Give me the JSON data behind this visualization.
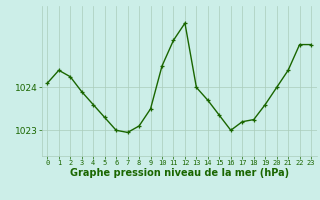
{
  "hours": [
    0,
    1,
    2,
    3,
    4,
    5,
    6,
    7,
    8,
    9,
    10,
    11,
    12,
    13,
    14,
    15,
    16,
    17,
    18,
    19,
    20,
    21,
    22,
    23
  ],
  "pressure": [
    1024.1,
    1024.4,
    1024.25,
    1023.9,
    1023.6,
    1023.3,
    1023.0,
    1022.95,
    1023.1,
    1023.5,
    1024.5,
    1025.1,
    1025.5,
    1024.0,
    1023.7,
    1023.35,
    1023.0,
    1023.2,
    1023.25,
    1023.6,
    1024.0,
    1024.4,
    1025.0,
    1025.0
  ],
  "line_color": "#1a6600",
  "marker": "+",
  "marker_size": 3,
  "bg_color": "#cceee8",
  "grid_color": "#aaccbb",
  "xlabel": "Graphe pression niveau de la mer (hPa)",
  "xlabel_fontsize": 7,
  "ylabel_ticks": [
    1023,
    1024
  ],
  "ylim": [
    1022.4,
    1025.9
  ],
  "linewidth": 1.0
}
